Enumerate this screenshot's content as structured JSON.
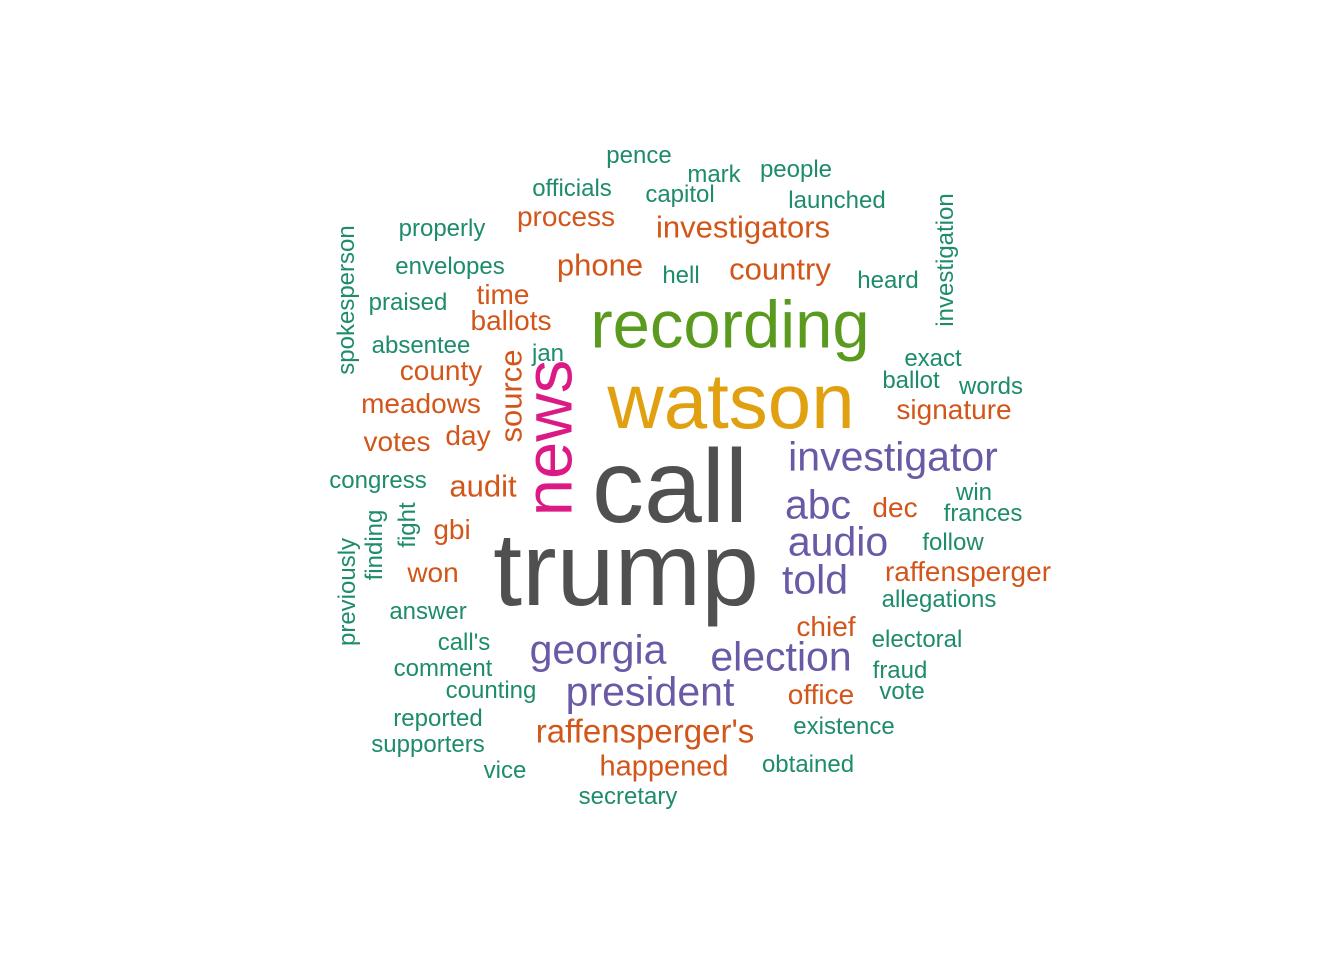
{
  "word_cloud": {
    "colors": {
      "gray": "#505050",
      "gold": "#E0A010",
      "green": "#5A9A1E",
      "magenta": "#DC1A85",
      "purple": "#6A5AA6",
      "orange": "#D2561A",
      "teal": "#1E8C6C"
    },
    "words": [
      {
        "text": "call",
        "color": "gray",
        "weight": 6
      },
      {
        "text": "trump",
        "color": "gray",
        "weight": 6
      },
      {
        "text": "watson",
        "color": "gold",
        "weight": 5
      },
      {
        "text": "recording",
        "color": "green",
        "weight": 4
      },
      {
        "text": "news",
        "color": "magenta",
        "weight": 4
      },
      {
        "text": "investigator",
        "color": "purple",
        "weight": 3
      },
      {
        "text": "abc",
        "color": "purple",
        "weight": 3
      },
      {
        "text": "audio",
        "color": "purple",
        "weight": 3
      },
      {
        "text": "told",
        "color": "purple",
        "weight": 3
      },
      {
        "text": "georgia",
        "color": "purple",
        "weight": 3
      },
      {
        "text": "election",
        "color": "purple",
        "weight": 3
      },
      {
        "text": "president",
        "color": "purple",
        "weight": 3
      },
      {
        "text": "investigators",
        "color": "orange",
        "weight": 2
      },
      {
        "text": "phone",
        "color": "orange",
        "weight": 2
      },
      {
        "text": "country",
        "color": "orange",
        "weight": 2
      },
      {
        "text": "process",
        "color": "orange",
        "weight": 2
      },
      {
        "text": "time",
        "color": "orange",
        "weight": 2
      },
      {
        "text": "ballots",
        "color": "orange",
        "weight": 2
      },
      {
        "text": "source",
        "color": "orange",
        "weight": 2
      },
      {
        "text": "county",
        "color": "orange",
        "weight": 2
      },
      {
        "text": "meadows",
        "color": "orange",
        "weight": 2
      },
      {
        "text": "votes",
        "color": "orange",
        "weight": 2
      },
      {
        "text": "day",
        "color": "orange",
        "weight": 2
      },
      {
        "text": "audit",
        "color": "orange",
        "weight": 2
      },
      {
        "text": "gbi",
        "color": "orange",
        "weight": 2
      },
      {
        "text": "won",
        "color": "orange",
        "weight": 2
      },
      {
        "text": "signature",
        "color": "orange",
        "weight": 2
      },
      {
        "text": "dec",
        "color": "orange",
        "weight": 2
      },
      {
        "text": "raffensperger",
        "color": "orange",
        "weight": 2
      },
      {
        "text": "chief",
        "color": "orange",
        "weight": 2
      },
      {
        "text": "office",
        "color": "orange",
        "weight": 2
      },
      {
        "text": "raffensperger's",
        "color": "orange",
        "weight": 2
      },
      {
        "text": "happened",
        "color": "orange",
        "weight": 2
      },
      {
        "text": "pence",
        "color": "teal",
        "weight": 1
      },
      {
        "text": "mark",
        "color": "teal",
        "weight": 1
      },
      {
        "text": "people",
        "color": "teal",
        "weight": 1
      },
      {
        "text": "officials",
        "color": "teal",
        "weight": 1
      },
      {
        "text": "capitol",
        "color": "teal",
        "weight": 1
      },
      {
        "text": "launched",
        "color": "teal",
        "weight": 1
      },
      {
        "text": "properly",
        "color": "teal",
        "weight": 1
      },
      {
        "text": "investigation",
        "color": "teal",
        "weight": 1
      },
      {
        "text": "spokesperson",
        "color": "teal",
        "weight": 1
      },
      {
        "text": "envelopes",
        "color": "teal",
        "weight": 1
      },
      {
        "text": "hell",
        "color": "teal",
        "weight": 1
      },
      {
        "text": "heard",
        "color": "teal",
        "weight": 1
      },
      {
        "text": "praised",
        "color": "teal",
        "weight": 1
      },
      {
        "text": "absentee",
        "color": "teal",
        "weight": 1
      },
      {
        "text": "jan",
        "color": "teal",
        "weight": 1
      },
      {
        "text": "exact",
        "color": "teal",
        "weight": 1
      },
      {
        "text": "ballot",
        "color": "teal",
        "weight": 1
      },
      {
        "text": "words",
        "color": "teal",
        "weight": 1
      },
      {
        "text": "congress",
        "color": "teal",
        "weight": 1
      },
      {
        "text": "win",
        "color": "teal",
        "weight": 1
      },
      {
        "text": "frances",
        "color": "teal",
        "weight": 1
      },
      {
        "text": "fight",
        "color": "teal",
        "weight": 1
      },
      {
        "text": "finding",
        "color": "teal",
        "weight": 1
      },
      {
        "text": "previously",
        "color": "teal",
        "weight": 1
      },
      {
        "text": "follow",
        "color": "teal",
        "weight": 1
      },
      {
        "text": "answer",
        "color": "teal",
        "weight": 1
      },
      {
        "text": "allegations",
        "color": "teal",
        "weight": 1
      },
      {
        "text": "call's",
        "color": "teal",
        "weight": 1
      },
      {
        "text": "electoral",
        "color": "teal",
        "weight": 1
      },
      {
        "text": "comment",
        "color": "teal",
        "weight": 1
      },
      {
        "text": "fraud",
        "color": "teal",
        "weight": 1
      },
      {
        "text": "counting",
        "color": "teal",
        "weight": 1
      },
      {
        "text": "vote",
        "color": "teal",
        "weight": 1
      },
      {
        "text": "reported",
        "color": "teal",
        "weight": 1
      },
      {
        "text": "existence",
        "color": "teal",
        "weight": 1
      },
      {
        "text": "supporters",
        "color": "teal",
        "weight": 1
      },
      {
        "text": "vice",
        "color": "teal",
        "weight": 1
      },
      {
        "text": "obtained",
        "color": "teal",
        "weight": 1
      },
      {
        "text": "secretary",
        "color": "teal",
        "weight": 1
      }
    ]
  }
}
